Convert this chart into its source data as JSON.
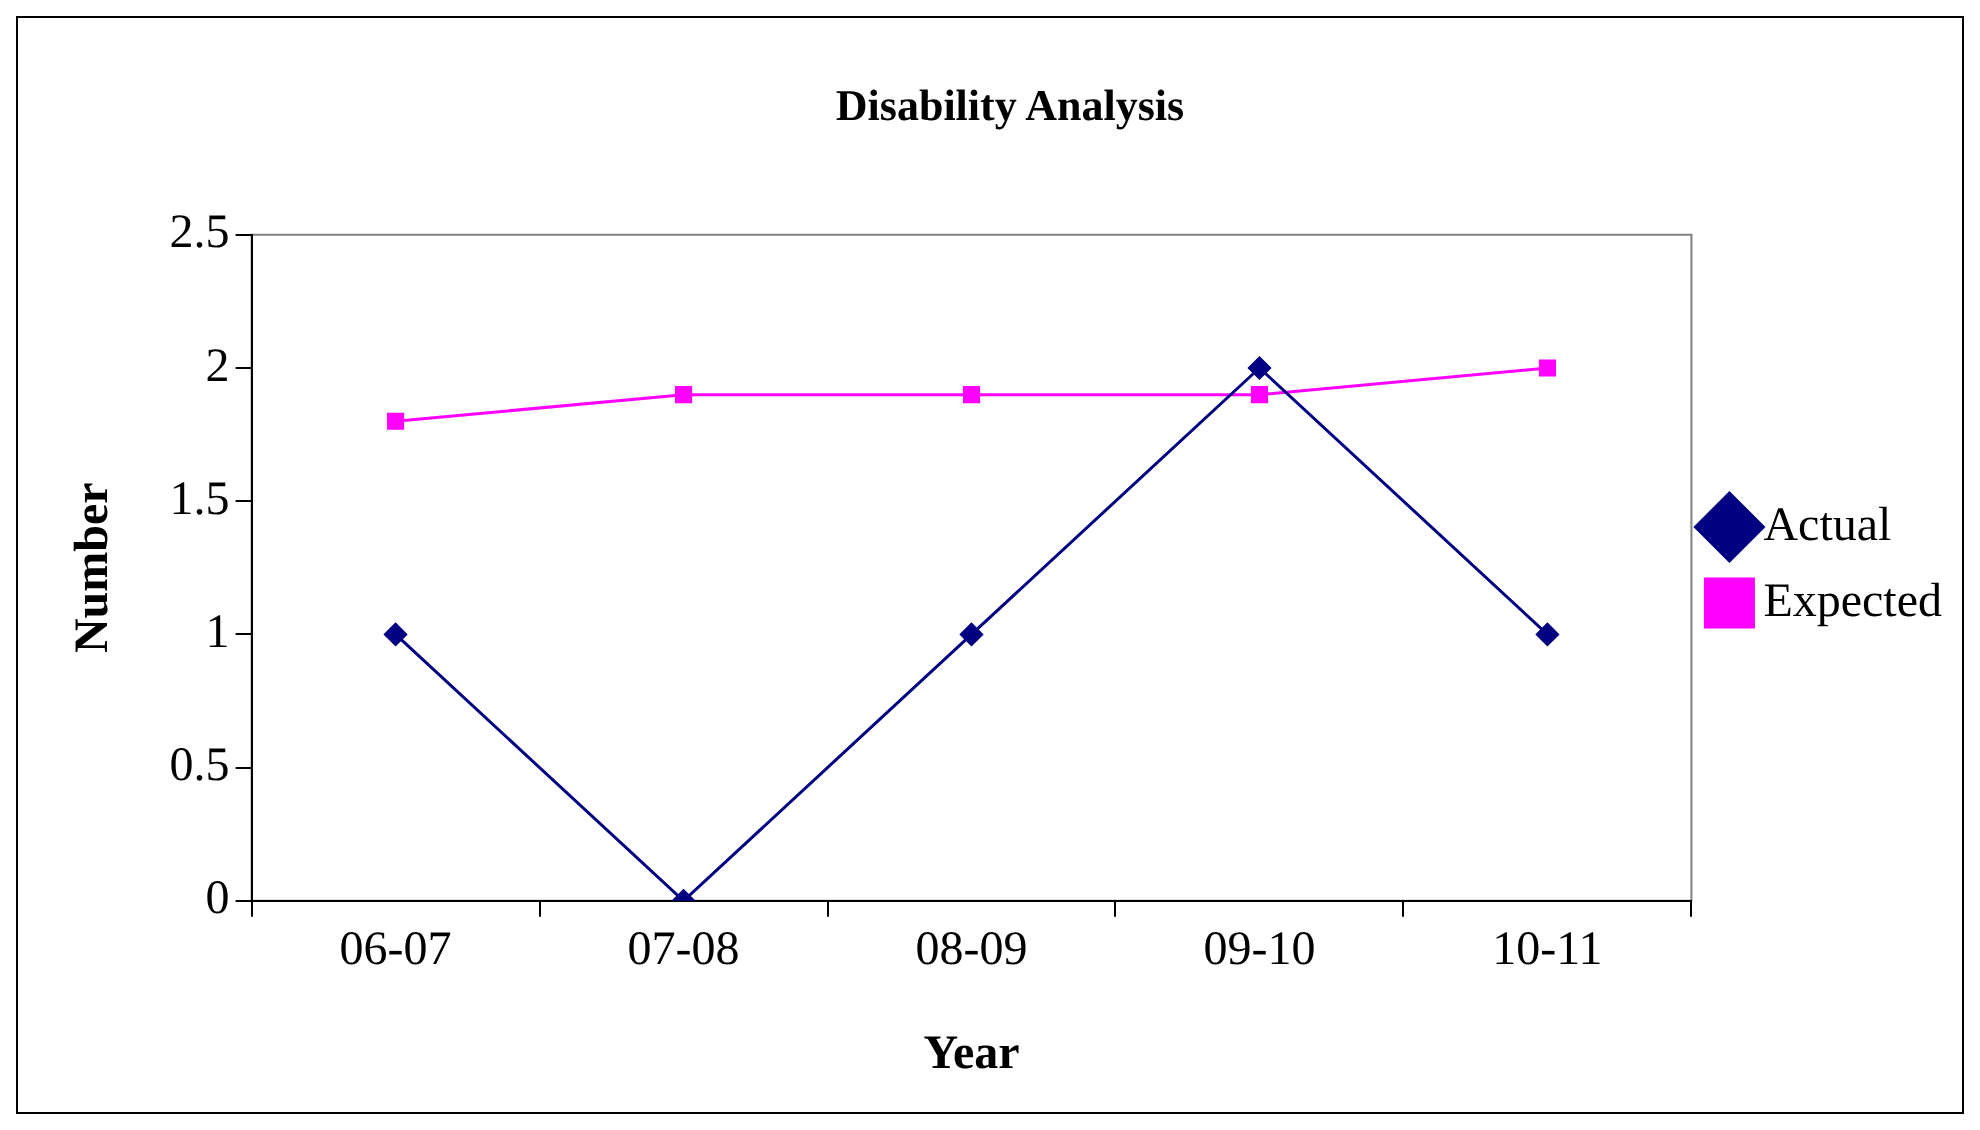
{
  "chart_data": {
    "type": "line",
    "title": "Disability Analysis",
    "xlabel": "Year",
    "ylabel": "Number",
    "categories": [
      "06-07",
      "07-08",
      "08-09",
      "09-10",
      "10-11"
    ],
    "series": [
      {
        "name": "Actual",
        "color": "#000080",
        "marker": "diamond",
        "values": [
          1,
          0,
          1,
          2,
          1
        ]
      },
      {
        "name": "Expected",
        "color": "#ff00ff",
        "marker": "square",
        "values": [
          1.8,
          1.9,
          1.9,
          1.9,
          2.0
        ]
      }
    ],
    "ylim": [
      0,
      2.5
    ],
    "yticks": [
      0,
      0.5,
      1,
      1.5,
      2,
      2.5
    ],
    "grid": false,
    "legend": "right",
    "line_style": "solid"
  }
}
